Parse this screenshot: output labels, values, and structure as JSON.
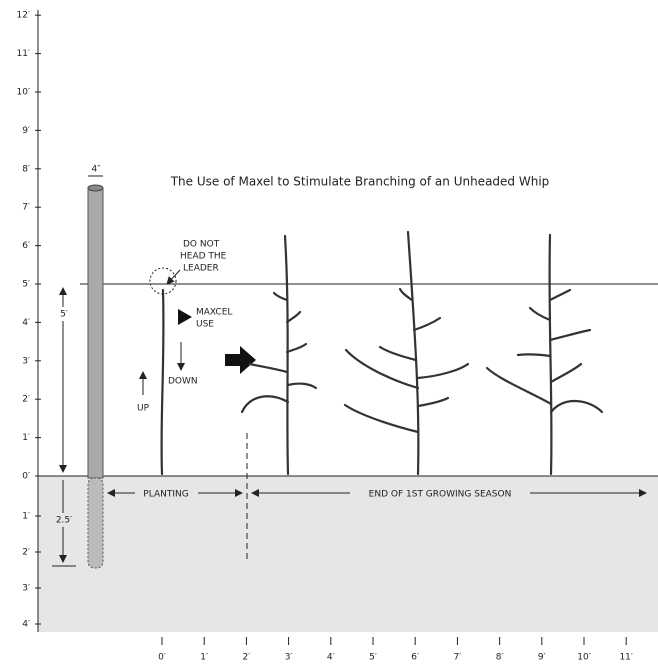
{
  "title": "The Use of Maxel to Stimulate Branching of an Unheaded Whip",
  "post": {
    "width_label": "4″",
    "above_label": "5′",
    "below_label": "2.5′"
  },
  "annotations": {
    "leader": [
      "DO NOT",
      "HEAD THE",
      "LEADER"
    ],
    "maxcel": [
      "MAXCEL",
      "USE"
    ],
    "down": "DOWN",
    "up": "UP"
  },
  "stages": {
    "planting": "PLANTING",
    "end_season": "END OF 1ST GROWING SEASON"
  },
  "axes": {
    "height_labels": [
      "0′",
      "1′",
      "2′",
      "3′",
      "4′",
      "5′",
      "6′",
      "7′",
      "8′",
      "9′",
      "10′",
      "11′",
      "12′"
    ],
    "depth_labels": [
      "1′",
      "2′",
      "3′",
      "4′"
    ],
    "distance_labels": [
      "0′",
      "1′",
      "2′",
      "3′",
      "4′",
      "5′",
      "6′",
      "7′",
      "8′",
      "9′",
      "10′",
      "11′"
    ]
  }
}
